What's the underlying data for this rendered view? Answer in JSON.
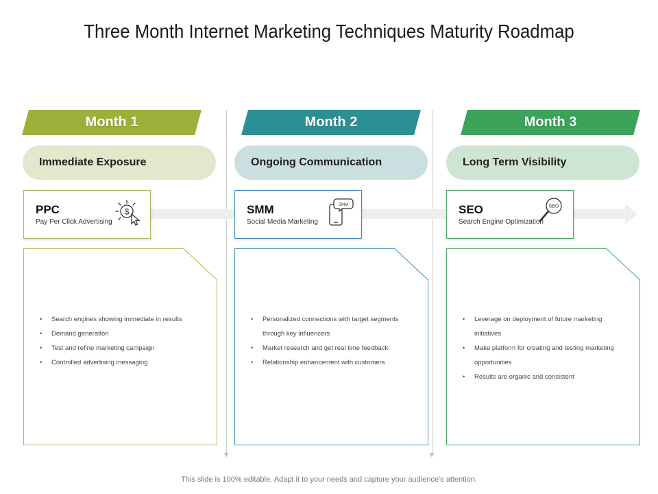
{
  "title": "Three Month Internet Marketing Techniques Maturity Roadmap",
  "footer": "This slide is 100% editable. Adapt it to your needs and capture your audience's attention.",
  "columns": [
    {
      "month": "Month 1",
      "color": "#9bb13a",
      "pill_color": "#e3e8cc",
      "pill": "Immediate Exposure",
      "card_title": "PPC",
      "card_subtitle": "Pay Per Click Advertising",
      "icon": "ppc-click-dollar-icon",
      "bullets": [
        "Search engines showing immediate in results",
        "Demand generation",
        "Test and refine marketing campaign",
        "Controlled advertising messaging"
      ]
    },
    {
      "month": "Month 2",
      "color": "#2b8f94",
      "pill_color": "#c9dfe0",
      "pill": "Ongoing Communication",
      "card_title": "SMM",
      "card_subtitle": "Social Media Marketing",
      "icon": "smm-phone-chat-icon",
      "bullets": [
        "Personalized connections with target segments through key influencers",
        "Market research and get real time feedback",
        "Relationship enhancement with customers"
      ]
    },
    {
      "month": "Month 3",
      "color": "#3ba35a",
      "pill_color": "#cfe5d4",
      "pill": "Long Term Visibility",
      "card_title": "SEO",
      "card_subtitle": "Search Engine Optimization",
      "icon": "seo-magnifier-icon",
      "bullets": [
        "Leverage on deployment of future marketing initiatives",
        "Make platform for creating and testing marketing opportunities",
        "Results are organic and consistent"
      ]
    }
  ]
}
